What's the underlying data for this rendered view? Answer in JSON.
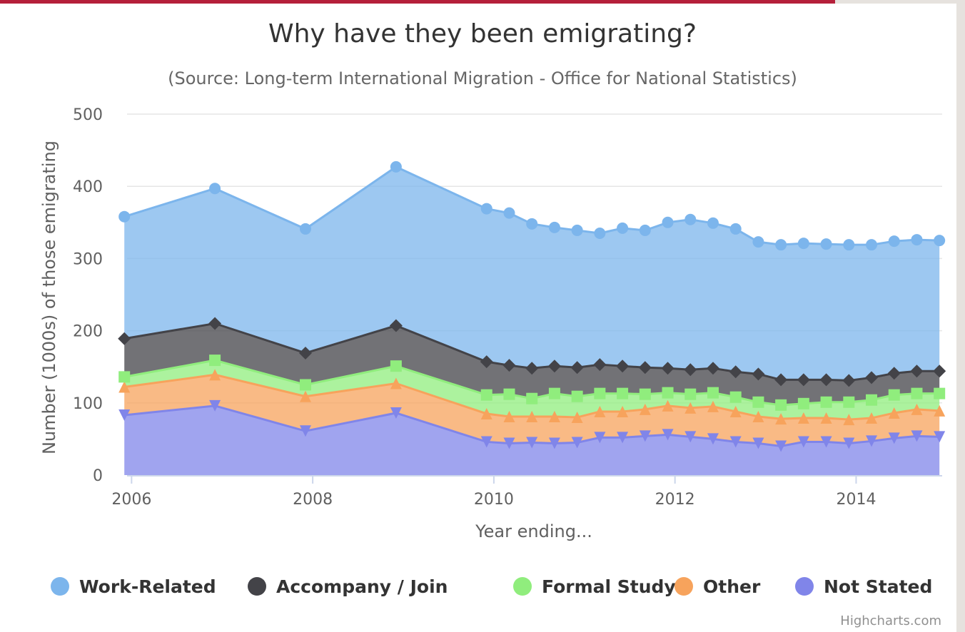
{
  "chart_data": {
    "type": "area",
    "stacked": true,
    "title": "Why have they been emigrating?",
    "subtitle": "(Source: Long-term International Migration - Office for National Statistics)",
    "xlabel": "Year ending...",
    "ylabel": "Number (1000s) of those emigrating",
    "ylim": [
      0,
      500
    ],
    "yticks": [
      0,
      100,
      200,
      300,
      400,
      500
    ],
    "xlim": [
      2005.95,
      2014.95
    ],
    "xticks": [
      2006,
      2008,
      2010,
      2012,
      2014
    ],
    "grid": true,
    "legend_placement": "bottom",
    "credits": "Highcharts.com",
    "x": [
      2005.92,
      2006.92,
      2007.92,
      2008.92,
      2009.92,
      2010.17,
      2010.42,
      2010.67,
      2010.92,
      2011.17,
      2011.42,
      2011.67,
      2011.92,
      2012.17,
      2012.42,
      2012.67,
      2012.92,
      2013.17,
      2013.42,
      2013.67,
      2013.92,
      2014.17,
      2014.42,
      2014.67,
      2014.92
    ],
    "series": [
      {
        "name": "Not Stated",
        "color": "#8085e9",
        "marker": "triangle-down",
        "values": [
          83,
          96,
          61,
          86,
          46,
          44,
          45,
          44,
          45,
          52,
          52,
          54,
          56,
          53,
          50,
          46,
          44,
          40,
          46,
          46,
          44,
          47,
          51,
          54,
          53
        ]
      },
      {
        "name": "Other",
        "color": "#f7a35c",
        "marker": "triangle",
        "values": [
          39,
          43,
          48,
          41,
          39,
          37,
          36,
          37,
          35,
          36,
          36,
          37,
          40,
          40,
          45,
          42,
          37,
          38,
          33,
          33,
          33,
          32,
          35,
          37,
          36
        ]
      },
      {
        "name": "Formal Study",
        "color": "#90ed7d",
        "marker": "square",
        "values": [
          14,
          20,
          16,
          24,
          26,
          31,
          25,
          32,
          29,
          25,
          25,
          21,
          18,
          19,
          19,
          20,
          20,
          19,
          20,
          22,
          24,
          25,
          25,
          22,
          24
        ]
      },
      {
        "name": "Accompany / Join",
        "color": "#434348",
        "marker": "diamond",
        "values": [
          53,
          51,
          44,
          56,
          46,
          40,
          42,
          38,
          40,
          40,
          38,
          37,
          34,
          34,
          34,
          35,
          39,
          35,
          33,
          31,
          30,
          31,
          30,
          31,
          31
        ]
      },
      {
        "name": "Work-Related",
        "color": "#7cb5ec",
        "marker": "circle",
        "values": [
          169,
          187,
          172,
          220,
          212,
          211,
          200,
          192,
          190,
          182,
          191,
          190,
          202,
          208,
          201,
          198,
          183,
          187,
          189,
          188,
          188,
          184,
          183,
          182,
          181
        ]
      }
    ],
    "legend": [
      {
        "name": "Work-Related",
        "color": "#7cb5ec"
      },
      {
        "name": "Accompany / Join",
        "color": "#434348"
      },
      {
        "name": "Formal Study",
        "color": "#90ed7d"
      },
      {
        "name": "Other",
        "color": "#f7a35c"
      },
      {
        "name": "Not Stated",
        "color": "#8085e9"
      }
    ]
  }
}
